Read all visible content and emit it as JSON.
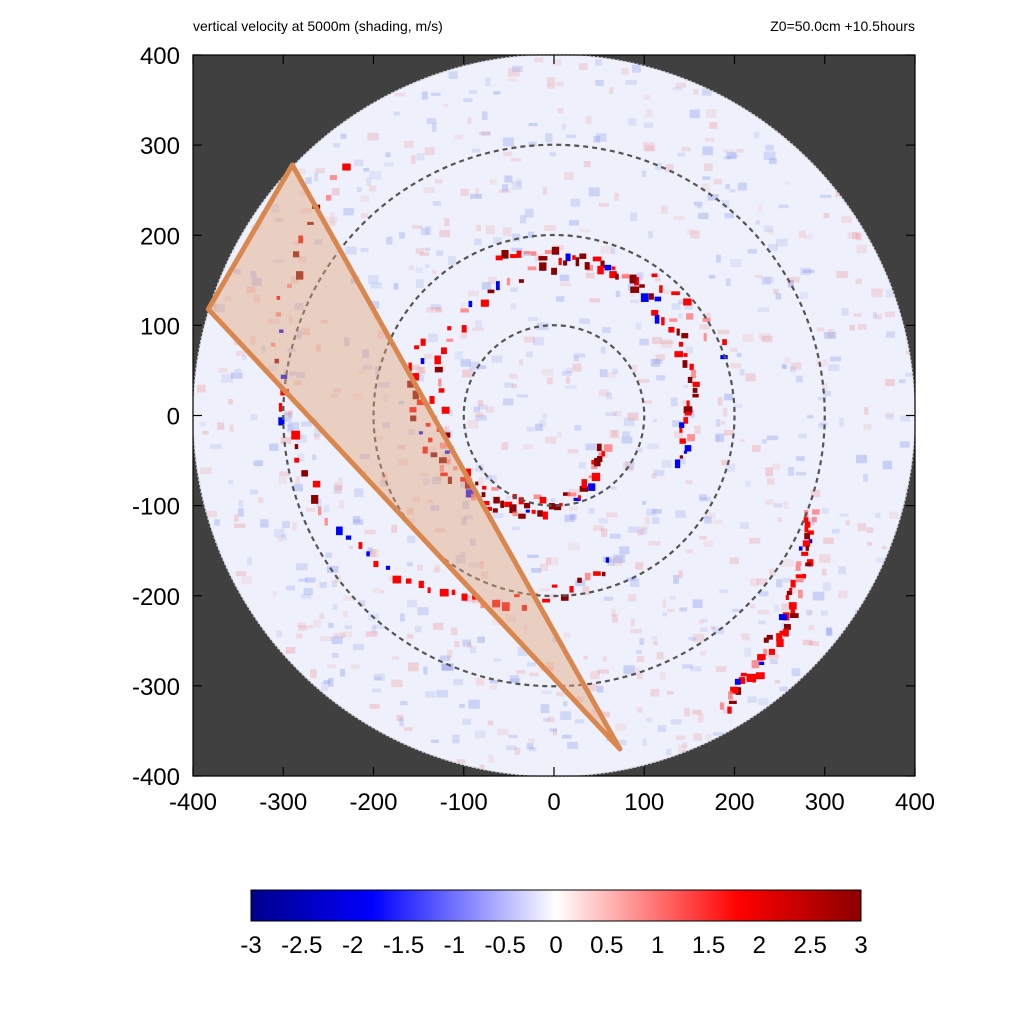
{
  "header": {
    "left_caption": "vertical velocity at 5000m (shading, m/s)",
    "right_caption": "Z0=50.0cm  +10.5hours"
  },
  "colors": {
    "outside_domain": "#404040",
    "domain_background": "#eef0fb",
    "negative_max": "#00008b",
    "negative_mid": "#0000ff",
    "zero": "#ffffff",
    "positive_mid": "#ff0000",
    "positive_max": "#8b0000",
    "ring_dash": "#555555",
    "wedge_fill": "#e3a57c",
    "wedge_edge": "#d9874f"
  },
  "chart_data": {
    "type": "heatmap",
    "title": "vertical velocity at 5000m (shading, m/s)",
    "annotation": "Z0=50.0cm  +10.5hours",
    "xlim": [
      -400,
      400
    ],
    "ylim": [
      -400,
      400
    ],
    "x_ticks": [
      "-400",
      "-300",
      "-200",
      "-100",
      "0",
      "100",
      "200",
      "300",
      "400"
    ],
    "y_ticks": [
      "400",
      "300",
      "200",
      "100",
      "0",
      "-100",
      "-200",
      "-300",
      "-400"
    ],
    "domain_radius": 400,
    "range_rings": [
      100,
      200,
      300
    ],
    "colorbar": {
      "min": -3,
      "max": 3,
      "tick_labels": [
        "-3",
        "-2.5",
        "-2",
        "-1.5",
        "-1",
        "-0.5",
        "0",
        "0.5",
        "1",
        "1.5",
        "2",
        "2.5",
        "3"
      ]
    },
    "wedge_polygon": [
      [
        -290,
        278
      ],
      [
        -383,
        118
      ],
      [
        73,
        -370
      ]
    ],
    "spiral_bands": [
      {
        "r0": 170,
        "theta0": 150,
        "r1": 60,
        "theta1": 330
      },
      {
        "r0": 200,
        "theta0": 20,
        "r1": 95,
        "theta1": 260
      },
      {
        "r0": 360,
        "theta0": 130,
        "r1": 170,
        "theta1": 290
      },
      {
        "r0": 190,
        "theta0": 110,
        "r1": 140,
        "theta1": -20
      },
      {
        "r0": 300,
        "theta0": -20,
        "r1": 370,
        "theta1": -60
      }
    ]
  }
}
